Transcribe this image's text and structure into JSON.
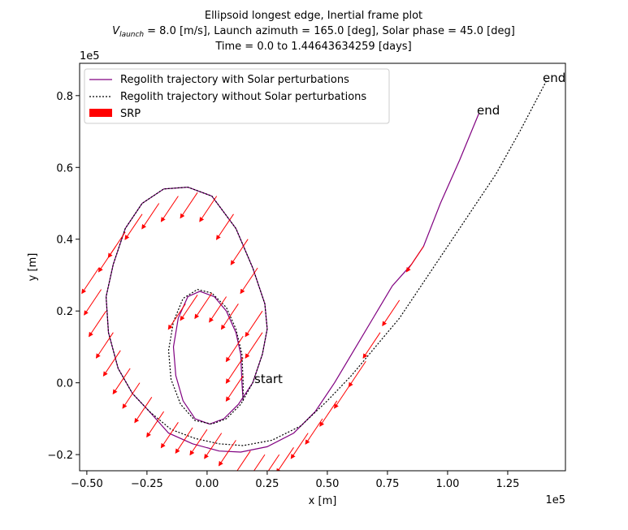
{
  "chart_data": {
    "type": "line",
    "title_lines": [
      "Ellipsoid longest edge, Inertial frame plot",
      "= 8.0 [m/s], Launch azimuth = 165.0 [deg], Solar phase = 45.0 [deg]",
      "Time = 0.0 to 1.44643634259 [days]"
    ],
    "title_symbol": {
      "base": "V",
      "subscript": "launch"
    },
    "xlabel": "x [m]",
    "ylabel": "y [m]",
    "x_offset_text": "1e5",
    "y_offset_text": "1e5",
    "xlim": [
      -0.53,
      1.49
    ],
    "ylim": [
      -0.245,
      0.89
    ],
    "x_ticks": [
      -0.5,
      -0.25,
      0.0,
      0.25,
      0.5,
      0.75,
      1.0,
      1.25
    ],
    "x_tick_labels": [
      "−0.50",
      "−0.25",
      "0.00",
      "0.25",
      "0.50",
      "0.75",
      "1.00",
      "1.25"
    ],
    "y_ticks": [
      -0.2,
      0.0,
      0.2,
      0.4,
      0.6,
      0.8
    ],
    "y_tick_labels": [
      "−0.2",
      "0.0",
      "0.2",
      "0.4",
      "0.6",
      "0.8"
    ],
    "legend": {
      "placement": "top-left",
      "entries": [
        "Regolith trajectory with Solar perturbations",
        "Regolith trajectory without Solar perturbations",
        "SRP"
      ]
    },
    "annotations": {
      "start": {
        "text": "start",
        "x": 0.2,
        "y": 0.0,
        "color": "#006400"
      },
      "end_with": {
        "text": "end",
        "x": 1.13,
        "y": 0.75,
        "color": "#8b0000"
      },
      "end_without": {
        "text": "end",
        "x": 1.41,
        "y": 0.84,
        "color": "#8b0000"
      }
    },
    "series": [
      {
        "name": "Regolith trajectory with Solar perturbations",
        "color": "#800080",
        "style": "solid",
        "points": [
          [
            0.15,
            -0.05
          ],
          [
            0.145,
            0.0
          ],
          [
            0.14,
            0.08
          ],
          [
            0.12,
            0.14
          ],
          [
            0.08,
            0.2
          ],
          [
            0.03,
            0.24
          ],
          [
            -0.03,
            0.255
          ],
          [
            -0.08,
            0.24
          ],
          [
            -0.12,
            0.18
          ],
          [
            -0.14,
            0.1
          ],
          [
            -0.13,
            0.02
          ],
          [
            -0.1,
            -0.05
          ],
          [
            -0.05,
            -0.1
          ],
          [
            0.01,
            -0.115
          ],
          [
            0.07,
            -0.1
          ],
          [
            0.13,
            -0.06
          ],
          [
            0.19,
            0.0
          ],
          [
            0.23,
            0.08
          ],
          [
            0.25,
            0.15
          ],
          [
            0.24,
            0.22
          ],
          [
            0.19,
            0.32
          ],
          [
            0.12,
            0.43
          ],
          [
            0.02,
            0.52
          ],
          [
            -0.08,
            0.545
          ],
          [
            -0.18,
            0.54
          ],
          [
            -0.27,
            0.5
          ],
          [
            -0.34,
            0.43
          ],
          [
            -0.39,
            0.33
          ],
          [
            -0.42,
            0.24
          ],
          [
            -0.41,
            0.14
          ],
          [
            -0.37,
            0.04
          ],
          [
            -0.31,
            -0.03
          ],
          [
            -0.24,
            -0.08
          ],
          [
            -0.16,
            -0.14
          ],
          [
            -0.06,
            -0.17
          ],
          [
            0.05,
            -0.19
          ],
          [
            0.14,
            -0.193
          ],
          [
            0.25,
            -0.178
          ],
          [
            0.36,
            -0.14
          ],
          [
            0.45,
            -0.08
          ],
          [
            0.53,
            0.0
          ],
          [
            0.61,
            0.09
          ],
          [
            0.69,
            0.18
          ],
          [
            0.77,
            0.27
          ],
          [
            0.85,
            0.33
          ],
          [
            0.9,
            0.38
          ],
          [
            0.97,
            0.5
          ],
          [
            1.05,
            0.62
          ],
          [
            1.13,
            0.75
          ]
        ]
      },
      {
        "name": "Regolith trajectory without Solar perturbations",
        "color": "#000000",
        "style": "dotted",
        "points": [
          [
            0.15,
            -0.05
          ],
          [
            0.15,
            0.0
          ],
          [
            0.145,
            0.08
          ],
          [
            0.12,
            0.15
          ],
          [
            0.08,
            0.21
          ],
          [
            0.02,
            0.25
          ],
          [
            -0.04,
            0.26
          ],
          [
            -0.1,
            0.235
          ],
          [
            -0.14,
            0.17
          ],
          [
            -0.16,
            0.09
          ],
          [
            -0.15,
            0.01
          ],
          [
            -0.11,
            -0.06
          ],
          [
            -0.05,
            -0.105
          ],
          [
            0.02,
            -0.115
          ],
          [
            0.08,
            -0.1
          ],
          [
            0.14,
            -0.06
          ],
          [
            0.19,
            0.0
          ],
          [
            0.23,
            0.08
          ],
          [
            0.25,
            0.15
          ],
          [
            0.24,
            0.22
          ],
          [
            0.19,
            0.32
          ],
          [
            0.12,
            0.43
          ],
          [
            0.02,
            0.52
          ],
          [
            -0.08,
            0.545
          ],
          [
            -0.18,
            0.54
          ],
          [
            -0.27,
            0.5
          ],
          [
            -0.34,
            0.43
          ],
          [
            -0.39,
            0.33
          ],
          [
            -0.42,
            0.24
          ],
          [
            -0.41,
            0.14
          ],
          [
            -0.37,
            0.04
          ],
          [
            -0.31,
            -0.03
          ],
          [
            -0.24,
            -0.08
          ],
          [
            -0.15,
            -0.13
          ],
          [
            -0.05,
            -0.155
          ],
          [
            0.05,
            -0.17
          ],
          [
            0.15,
            -0.175
          ],
          [
            0.27,
            -0.16
          ],
          [
            0.39,
            -0.12
          ],
          [
            0.5,
            -0.05
          ],
          [
            0.6,
            0.02
          ],
          [
            0.7,
            0.1
          ],
          [
            0.8,
            0.18
          ],
          [
            0.9,
            0.28
          ],
          [
            1.0,
            0.38
          ],
          [
            1.1,
            0.48
          ],
          [
            1.2,
            0.58
          ],
          [
            1.3,
            0.7
          ],
          [
            1.41,
            0.84
          ]
        ]
      }
    ],
    "srp": {
      "name": "SRP",
      "color": "#ff0000",
      "direction_deg": 225,
      "arrow_length": 0.1,
      "anchors": [
        [
          -0.45,
          0.32
        ],
        [
          -0.44,
          0.26
        ],
        [
          -0.42,
          0.2
        ],
        [
          -0.39,
          0.14
        ],
        [
          -0.36,
          0.09
        ],
        [
          -0.32,
          0.04
        ],
        [
          -0.28,
          0.0
        ],
        [
          -0.23,
          -0.04
        ],
        [
          -0.18,
          -0.08
        ],
        [
          -0.12,
          -0.11
        ],
        [
          -0.06,
          -0.125
        ],
        [
          0.0,
          -0.13
        ],
        [
          0.06,
          -0.14
        ],
        [
          0.12,
          -0.16
        ],
        [
          0.18,
          -0.19
        ],
        [
          0.24,
          -0.2
        ],
        [
          0.3,
          -0.2
        ],
        [
          0.36,
          -0.18
        ],
        [
          0.42,
          -0.14
        ],
        [
          0.48,
          -0.1
        ],
        [
          0.54,
          -0.05
        ],
        [
          0.6,
          0.0
        ],
        [
          0.66,
          0.06
        ],
        [
          0.72,
          0.14
        ],
        [
          0.8,
          0.23
        ],
        [
          0.9,
          0.38
        ],
        [
          0.23,
          0.2
        ],
        [
          0.23,
          0.14
        ],
        [
          0.21,
          0.32
        ],
        [
          0.17,
          0.4
        ],
        [
          0.11,
          0.47
        ],
        [
          0.04,
          0.52
        ],
        [
          -0.04,
          0.53
        ],
        [
          -0.12,
          0.52
        ],
        [
          -0.2,
          0.5
        ],
        [
          -0.27,
          0.47
        ],
        [
          -0.34,
          0.42
        ],
        [
          -0.38,
          0.38
        ],
        [
          0.13,
          0.22
        ],
        [
          0.08,
          0.24
        ],
        [
          0.02,
          0.25
        ],
        [
          -0.04,
          0.245
        ],
        [
          -0.09,
          0.22
        ],
        [
          0.15,
          0.13
        ],
        [
          0.15,
          0.07
        ],
        [
          0.15,
          0.02
        ]
      ]
    }
  }
}
